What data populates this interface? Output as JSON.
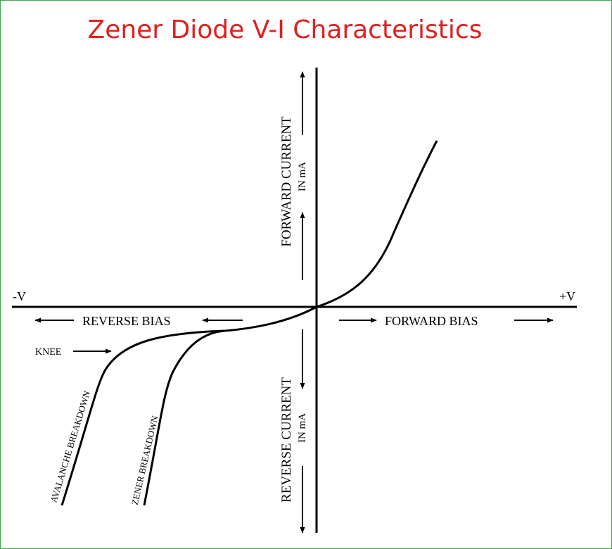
{
  "title": "Zener Diode V-I Characteristics",
  "colors": {
    "title": "#e02020",
    "frame": "#3aa84a",
    "ink": "#000000"
  },
  "axis_labels": {
    "neg_v": "-V",
    "pos_v": "+V",
    "reverse_bias": "REVERSE BIAS",
    "forward_bias": "FORWARD BIAS",
    "forward_current": "FORWARD CURRENT",
    "forward_current_unit": "IN mA",
    "reverse_current": "REVERSE CURRENT",
    "reverse_current_unit": "IN mA"
  },
  "annotations": {
    "knee": "KNEE",
    "avalanche_breakdown": "AVALANCHE BREAKDOWN",
    "zener_breakdown": "ZENER BREAKDOWN"
  }
}
